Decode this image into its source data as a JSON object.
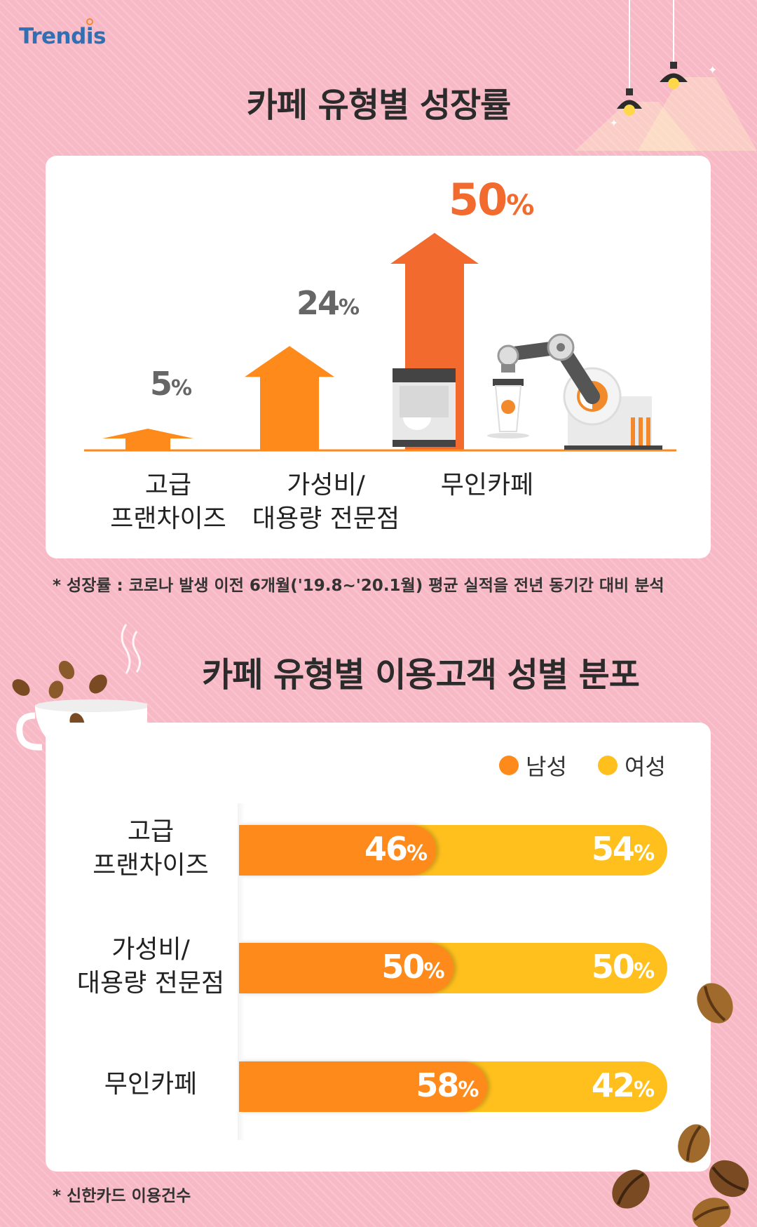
{
  "logo": "Trendis",
  "top_title": "카페 유형별 성장률",
  "top_note": "* 성장률 : 코로나 발생 이전 6개월('19.8~'20.1월) 평균 실적을 전년 동기간 대비 분석",
  "bottom_title": "카페 유형별 이용고객 성별 분포",
  "bottom_note": "* 신한카드 이용건수",
  "legend": {
    "male": "남성",
    "female": "여성"
  },
  "colors": {
    "orange": "#ff8a1c",
    "orange_dark": "#f26a2e",
    "yellow": "#ffc01e",
    "gray_text": "#666666"
  },
  "pct_unit": "%",
  "growth_bars": [
    {
      "label_line1": "고급",
      "label_line2": "프랜차이즈",
      "value_text": "5"
    },
    {
      "label_line1": "가성비/",
      "label_line2": "대용량 전문점",
      "value_text": "24"
    },
    {
      "label_line1": "무인카페",
      "label_line2": "",
      "value_text": "50"
    }
  ],
  "gender_rows": [
    {
      "label_line1": "고급",
      "label_line2": "프랜차이즈",
      "male_text": "46",
      "female_text": "54"
    },
    {
      "label_line1": "가성비/",
      "label_line2": "대용량 전문점",
      "male_text": "50",
      "female_text": "50"
    },
    {
      "label_line1": "무인카페",
      "label_line2": "",
      "male_text": "58",
      "female_text": "42"
    }
  ],
  "chart_data": [
    {
      "type": "bar",
      "title": "카페 유형별 성장률",
      "categories": [
        "고급 프랜차이즈",
        "가성비/대용량 전문점",
        "무인카페"
      ],
      "values": [
        5,
        24,
        50
      ],
      "unit": "%",
      "ylim": [
        0,
        50
      ],
      "grid": false
    },
    {
      "type": "bar",
      "orientation": "horizontal",
      "stacked": true,
      "title": "카페 유형별 이용고객 성별 분포",
      "categories": [
        "고급 프랜차이즈",
        "가성비/대용량 전문점",
        "무인카페"
      ],
      "series": [
        {
          "name": "남성",
          "values": [
            46,
            50,
            58
          ]
        },
        {
          "name": "여성",
          "values": [
            54,
            50,
            42
          ]
        }
      ],
      "unit": "%",
      "xlim": [
        0,
        100
      ],
      "legend": "top-right",
      "grid": false
    }
  ]
}
